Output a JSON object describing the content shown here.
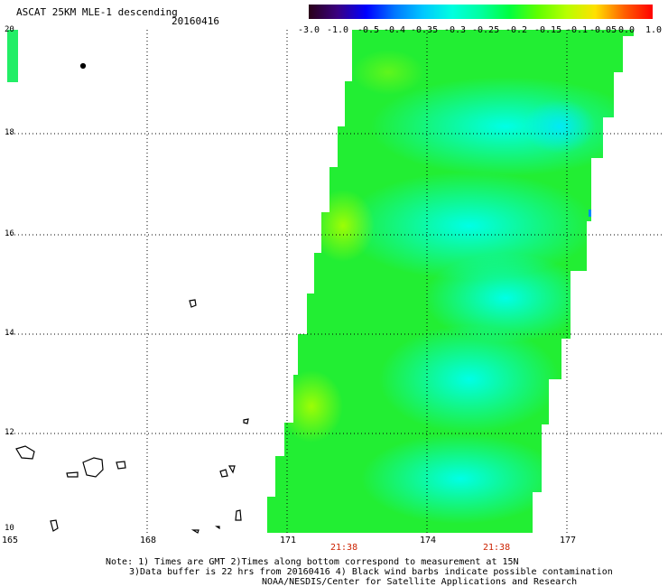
{
  "title": "ASCAT 25KM MLE-1 descending",
  "date": "20160416",
  "colorbar": {
    "labels": [
      "-3.0",
      "-1.0",
      "-0.5",
      "-0.4",
      "-0.35",
      "-0.3",
      "-0.25",
      "-0.2",
      "-0.15",
      "-0.1",
      "-0.05",
      "0.0",
      "1.0"
    ],
    "colors": [
      "#2a0018",
      "#3a0080",
      "#0000ff",
      "#0077ff",
      "#00c8ff",
      "#00ffe0",
      "#00ffa0",
      "#00ff40",
      "#60ff00",
      "#b8ff00",
      "#ffe000",
      "#ff6000",
      "#ff0000"
    ]
  },
  "axes": {
    "x_ticks": [
      "165",
      "168",
      "171",
      "174",
      "177"
    ],
    "y_ticks": [
      "20",
      "18",
      "16",
      "14",
      "12",
      "10"
    ],
    "time_labels": [
      "21:38",
      "21:38"
    ]
  },
  "notes": {
    "line1": "Note: 1) Times are GMT 2)Times along bottom correspond to measurement at 15N",
    "line2": "3)Data buffer is 22 hrs from 20160416 4) Black wind barbs indicate possible contamination",
    "line3": "NOAA/NESDIS/Center for Satellite Applications and Research"
  },
  "palette": {
    "green": "#22ee22",
    "cyan": "#00ffdd",
    "yellow_green": "#ccff00",
    "grid": "#000000"
  }
}
